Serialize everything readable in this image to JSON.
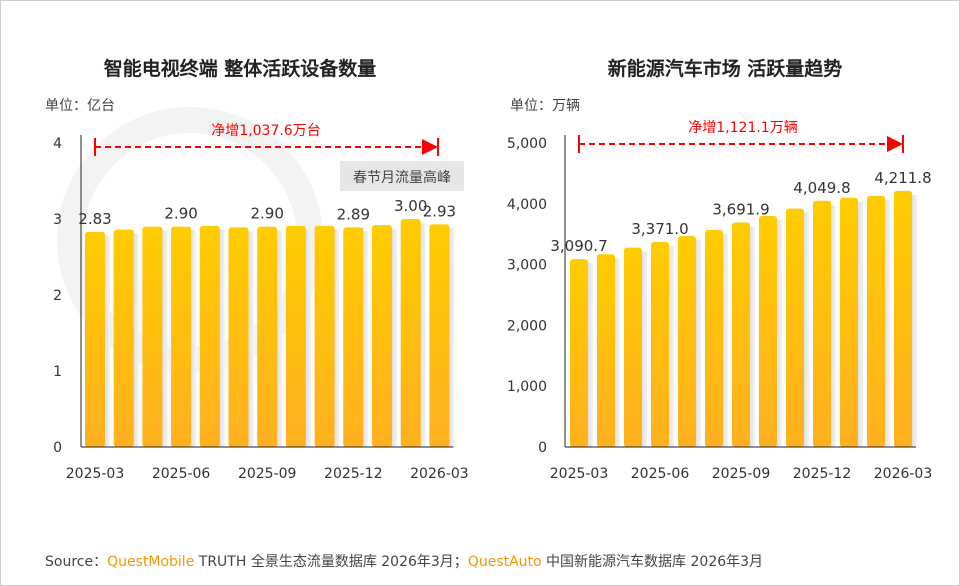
{
  "source": {
    "prefix": "Source：",
    "brand1": "QuestMobile",
    "text1": " TRUTH 全景生态流量数据库 2026年3月；",
    "brand2": "QuestAuto",
    "text2": " 中国新能源汽车数据库 2026年3月"
  },
  "colors": {
    "bar_top": "#FFCC00",
    "bar_bottom": "#FFB020",
    "annotation": "#FF0000",
    "brand": "#F39800"
  },
  "chart_data": [
    {
      "type": "bar",
      "title": "智能电视终端 整体活跃设备数量",
      "unit": "单位：亿台",
      "categories": [
        "2025-03",
        "2025-04",
        "2025-05",
        "2025-06",
        "2025-07",
        "2025-08",
        "2025-09",
        "2025-10",
        "2025-11",
        "2025-12",
        "2026-01",
        "2026-02",
        "2026-03"
      ],
      "x_tick_labels": [
        "2025-03",
        "2025-06",
        "2025-09",
        "2025-12",
        "2026-03"
      ],
      "values": [
        2.83,
        2.86,
        2.9,
        2.9,
        2.91,
        2.89,
        2.9,
        2.91,
        2.91,
        2.89,
        2.92,
        3.0,
        2.93
      ],
      "data_labels": [
        "2.83",
        "",
        "",
        "2.90",
        "",
        "",
        "2.90",
        "",
        "",
        "2.89",
        "",
        "3.00",
        "2.93"
      ],
      "ylim": [
        0,
        4
      ],
      "y_ticks": [
        "0",
        "1",
        "2",
        "3",
        "4"
      ],
      "annotation": "净增1,037.6万台",
      "callout": "春节月流量高峰",
      "grid": false
    },
    {
      "type": "bar",
      "title": "新能源汽车市场 活跃量趋势",
      "unit": "单位：万辆",
      "categories": [
        "2025-03",
        "2025-04",
        "2025-05",
        "2025-06",
        "2025-07",
        "2025-08",
        "2025-09",
        "2025-10",
        "2025-11",
        "2025-12",
        "2026-01",
        "2026-02",
        "2026-03"
      ],
      "x_tick_labels": [
        "2025-03",
        "2025-06",
        "2025-09",
        "2025-12",
        "2026-03"
      ],
      "values": [
        3090.7,
        3170,
        3280,
        3371.0,
        3470,
        3570,
        3691.9,
        3800,
        3920,
        4049.8,
        4100,
        4130,
        4211.8
      ],
      "data_labels": [
        "3,090.7",
        "",
        "",
        "3,371.0",
        "",
        "",
        "3,691.9",
        "",
        "",
        "4,049.8",
        "",
        "",
        "4,211.8"
      ],
      "ylim": [
        0,
        5000
      ],
      "y_ticks": [
        "0",
        "1,000",
        "2,000",
        "3,000",
        "4,000",
        "5,000"
      ],
      "annotation": "净增1,121.1万辆",
      "grid": false
    }
  ]
}
